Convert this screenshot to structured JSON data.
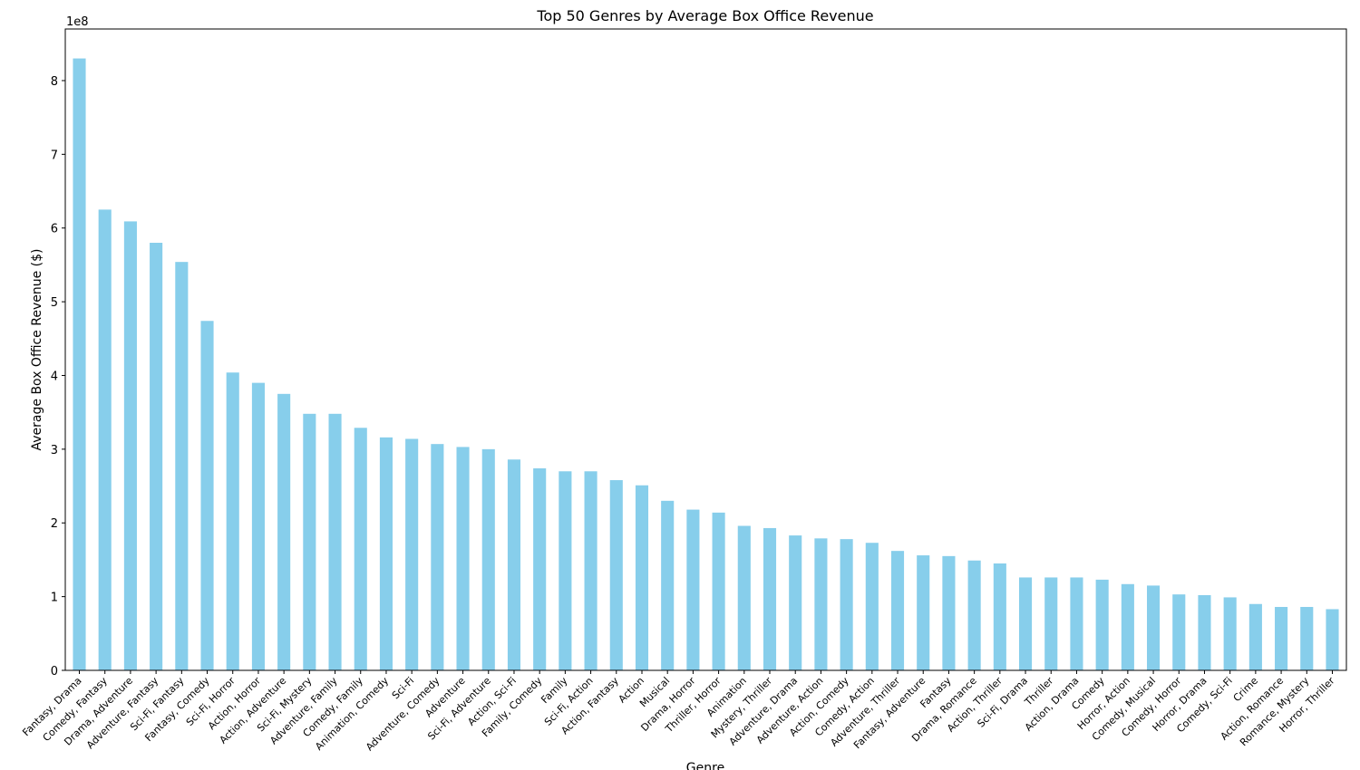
{
  "chart_data": {
    "type": "bar",
    "title": "Top 50 Genres by Average Box Office Revenue",
    "xlabel": "Genre",
    "ylabel": "Average Box Office Revenue ($)",
    "y_scale_label": "1e8",
    "ylim": [
      0,
      870000000
    ],
    "y_ticks": [
      0,
      100000000,
      200000000,
      300000000,
      400000000,
      500000000,
      600000000,
      700000000,
      800000000
    ],
    "y_tick_labels": [
      "0",
      "1",
      "2",
      "3",
      "4",
      "5",
      "6",
      "7",
      "8"
    ],
    "grid": false,
    "bar_color": "#87ceeb",
    "categories": [
      "Fantasy, Drama",
      "Comedy, Fantasy",
      "Drama, Adventure",
      "Adventure, Fantasy",
      "Sci-Fi, Fantasy",
      "Fantasy, Comedy",
      "Sci-Fi, Horror",
      "Action, Horror",
      "Action, Adventure",
      "Sci-Fi, Mystery",
      "Adventure, Family",
      "Comedy, Family",
      "Animation, Comedy",
      "Sci-Fi",
      "Adventure, Comedy",
      "Adventure",
      "Sci-Fi, Adventure",
      "Action, Sci-Fi",
      "Family, Comedy",
      "Family",
      "Sci-Fi, Action",
      "Action, Fantasy",
      "Action",
      "Musical",
      "Drama, Horror",
      "Thriller, Horror",
      "Animation",
      "Mystery, Thriller",
      "Adventure, Drama",
      "Adventure, Action",
      "Action, Comedy",
      "Comedy, Action",
      "Adventure, Thriller",
      "Fantasy, Adventure",
      "Fantasy",
      "Drama, Romance",
      "Action, Thriller",
      "Sci-Fi, Drama",
      "Thriller",
      "Action, Drama",
      "Comedy",
      "Horror, Action",
      "Comedy, Musical",
      "Comedy, Horror",
      "Horror, Drama",
      "Comedy, Sci-Fi",
      "Crime",
      "Action, Romance",
      "Romance, Mystery",
      "Horror, Thriller"
    ],
    "values": [
      830000000,
      625000000,
      609000000,
      580000000,
      554000000,
      474000000,
      404000000,
      390000000,
      375000000,
      348000000,
      348000000,
      329000000,
      316000000,
      314000000,
      307000000,
      303000000,
      300000000,
      286000000,
      274000000,
      270000000,
      270000000,
      258000000,
      251000000,
      230000000,
      218000000,
      214000000,
      196000000,
      193000000,
      183000000,
      179000000,
      178000000,
      173000000,
      162000000,
      156000000,
      155000000,
      149000000,
      145000000,
      126000000,
      126000000,
      126000000,
      123000000,
      117000000,
      115000000,
      103000000,
      102000000,
      99000000,
      90000000,
      86000000,
      86000000,
      83000000
    ]
  }
}
